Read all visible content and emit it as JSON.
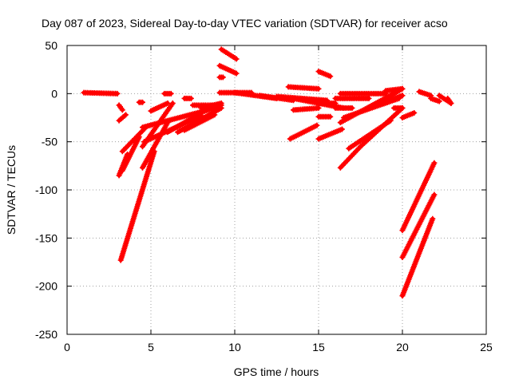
{
  "chart_data": {
    "type": "scatter",
    "title": "Day 087 of 2023, Sidereal Day-to-day VTEC variation (SDTVAR) for receiver acso",
    "xlabel": "GPS time / hours",
    "ylabel": "SDTVAR / TECUs",
    "xlim": [
      0,
      25
    ],
    "ylim": [
      -250,
      50
    ],
    "x_ticks": [
      "0",
      "5",
      "10",
      "15",
      "20",
      "25"
    ],
    "y_ticks": [
      "50",
      "0",
      "-50",
      "-100",
      "-150",
      "-200",
      "-250"
    ],
    "grid": true,
    "legend": "none",
    "marker_color": "#ff0000",
    "segments": [
      {
        "x": [
          1.0,
          3.0
        ],
        "y": [
          1,
          0
        ]
      },
      {
        "x": [
          3.1,
          3.3
        ],
        "y": [
          -12,
          -17
        ]
      },
      {
        "x": [
          3.1,
          3.5
        ],
        "y": [
          -28,
          -22
        ]
      },
      {
        "x": [
          3.1,
          3.6
        ],
        "y": [
          -85,
          -63
        ]
      },
      {
        "x": [
          3.2,
          5.2
        ],
        "y": [
          -173,
          -60
        ]
      },
      {
        "x": [
          3.3,
          4.3
        ],
        "y": [
          -80,
          -45
        ]
      },
      {
        "x": [
          3.3,
          4.7
        ],
        "y": [
          -60,
          -35
        ]
      },
      {
        "x": [
          4.3,
          4.5
        ],
        "y": [
          -9,
          -9
        ]
      },
      {
        "x": [
          4.5,
          6.3
        ],
        "y": [
          -55,
          -10
        ]
      },
      {
        "x": [
          4.5,
          6.0
        ],
        "y": [
          -77,
          -30
        ]
      },
      {
        "x": [
          4.6,
          8.0
        ],
        "y": [
          -50,
          -23
        ]
      },
      {
        "x": [
          4.5,
          8.2
        ],
        "y": [
          -35,
          -18
        ]
      },
      {
        "x": [
          5.0,
          6.0
        ],
        "y": [
          -18,
          -10
        ]
      },
      {
        "x": [
          5.8,
          6.2
        ],
        "y": [
          0,
          0
        ]
      },
      {
        "x": [
          6.0,
          7.5
        ],
        "y": [
          -40,
          -25
        ]
      },
      {
        "x": [
          6.6,
          9.2
        ],
        "y": [
          -40,
          -15
        ]
      },
      {
        "x": [
          7.0,
          8.8
        ],
        "y": [
          -38,
          -22
        ]
      },
      {
        "x": [
          7.5,
          9.0
        ],
        "y": [
          -12,
          -12
        ]
      },
      {
        "x": [
          7.0,
          7.4
        ],
        "y": [
          -5,
          -5
        ]
      },
      {
        "x": [
          7.6,
          9.2
        ],
        "y": [
          -22,
          -12
        ]
      },
      {
        "x": [
          8.0,
          9.2
        ],
        "y": [
          -15,
          -10
        ]
      },
      {
        "x": [
          9.2,
          10.1
        ],
        "y": [
          46,
          36
        ]
      },
      {
        "x": [
          9.1,
          10.1
        ],
        "y": [
          29,
          21
        ]
      },
      {
        "x": [
          9.1,
          9.3
        ],
        "y": [
          17,
          17
        ]
      },
      {
        "x": [
          9.1,
          11.0
        ],
        "y": [
          1,
          1
        ]
      },
      {
        "x": [
          10.0,
          12.5
        ],
        "y": [
          1,
          -5
        ]
      },
      {
        "x": [
          11.5,
          13.5
        ],
        "y": [
          -2,
          -7
        ]
      },
      {
        "x": [
          12.5,
          15.5
        ],
        "y": [
          -3,
          -7
        ]
      },
      {
        "x": [
          13.5,
          16.5
        ],
        "y": [
          -5,
          -15
        ]
      },
      {
        "x": [
          13.2,
          15.0
        ],
        "y": [
          7,
          5
        ]
      },
      {
        "x": [
          13.5,
          15.0
        ],
        "y": [
          -17,
          -15
        ]
      },
      {
        "x": [
          13.3,
          14.9
        ],
        "y": [
          -47,
          -33
        ]
      },
      {
        "x": [
          15.0,
          15.7
        ],
        "y": [
          23,
          18
        ]
      },
      {
        "x": [
          14.9,
          16.0
        ],
        "y": [
          -10,
          -10
        ]
      },
      {
        "x": [
          15.0,
          15.7
        ],
        "y": [
          -24,
          -24
        ]
      },
      {
        "x": [
          15.0,
          16.4
        ],
        "y": [
          -47,
          -37
        ]
      },
      {
        "x": [
          16.0,
          17.0
        ],
        "y": [
          -15,
          -15
        ]
      },
      {
        "x": [
          16.3,
          19.0
        ],
        "y": [
          0,
          0
        ]
      },
      {
        "x": [
          16.0,
          18.0
        ],
        "y": [
          -5,
          -5
        ]
      },
      {
        "x": [
          16.3,
          20.0
        ],
        "y": [
          -30,
          5
        ]
      },
      {
        "x": [
          16.5,
          19.8
        ],
        "y": [
          -25,
          -5
        ]
      },
      {
        "x": [
          16.3,
          17.5
        ],
        "y": [
          -77,
          -55
        ]
      },
      {
        "x": [
          16.8,
          19.3
        ],
        "y": [
          -57,
          -28
        ]
      },
      {
        "x": [
          17.5,
          20.0
        ],
        "y": [
          -55,
          -15
        ]
      },
      {
        "x": [
          18.0,
          20.0
        ],
        "y": [
          -15,
          -2
        ]
      },
      {
        "x": [
          19.0,
          20.0
        ],
        "y": [
          -8,
          -2
        ]
      },
      {
        "x": [
          19.0,
          20.0
        ],
        "y": [
          3,
          5
        ]
      },
      {
        "x": [
          19.5,
          20.0
        ],
        "y": [
          -15,
          -15
        ]
      },
      {
        "x": [
          20.0,
          20.7
        ],
        "y": [
          -25,
          -20
        ]
      },
      {
        "x": [
          20.0,
          21.9
        ],
        "y": [
          -142,
          -72
        ]
      },
      {
        "x": [
          20.0,
          21.9
        ],
        "y": [
          -170,
          -105
        ]
      },
      {
        "x": [
          20.0,
          21.8
        ],
        "y": [
          -210,
          -130
        ]
      },
      {
        "x": [
          21.0,
          21.7
        ],
        "y": [
          2,
          -2
        ]
      },
      {
        "x": [
          21.7,
          22.2
        ],
        "y": [
          -5,
          -8
        ]
      },
      {
        "x": [
          22.2,
          22.9
        ],
        "y": [
          -2,
          -10
        ]
      },
      {
        "x": [
          22.7,
          22.9
        ],
        "y": [
          -5,
          -10
        ]
      }
    ]
  }
}
